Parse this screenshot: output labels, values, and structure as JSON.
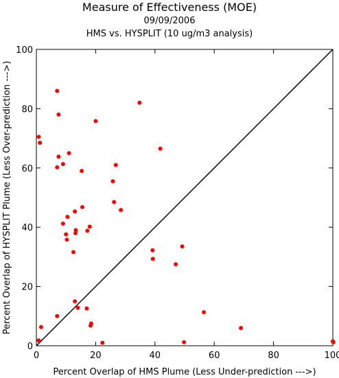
{
  "chart_data": {
    "type": "scatter",
    "title": "Measure of Effectiveness (MOE)",
    "subtitle": "09/09/2006",
    "subtitle2": "HMS vs. HYSPLIT  (10 ug/m3 analysis)",
    "xlabel": "Percent Overlap of HMS Plume (Less Under-prediction --->)",
    "ylabel": "Percent Overlap of HYSPLIT Plume (Less Over-prediction --->)",
    "xlim": [
      0,
      100
    ],
    "ylim": [
      0,
      100
    ],
    "xticks": [
      "0",
      "20",
      "40",
      "60",
      "80",
      "100"
    ],
    "yticks": [
      "0",
      "20",
      "40",
      "60",
      "80",
      "100"
    ],
    "reference_line": "y = x",
    "grid": false,
    "point_color": "#ff0000",
    "points": [
      [
        0.8,
        70.5
      ],
      [
        1.2,
        68.5
      ],
      [
        0.8,
        1.8
      ],
      [
        1.6,
        6.3
      ],
      [
        7.0,
        86.0
      ],
      [
        7.5,
        78.0
      ],
      [
        7.5,
        63.8
      ],
      [
        7.0,
        60.2
      ],
      [
        9.0,
        61.3
      ],
      [
        11.0,
        65.0
      ],
      [
        7.0,
        10.0
      ],
      [
        9.0,
        41.2
      ],
      [
        10.0,
        37.6
      ],
      [
        10.3,
        35.8
      ],
      [
        10.5,
        43.5
      ],
      [
        12.5,
        31.6
      ],
      [
        13.0,
        45.3
      ],
      [
        13.2,
        38.0
      ],
      [
        13.3,
        39.0
      ],
      [
        15.3,
        59.0
      ],
      [
        15.5,
        46.8
      ],
      [
        17.2,
        38.8
      ],
      [
        18.0,
        40.2
      ],
      [
        13.0,
        15.0
      ],
      [
        14.0,
        12.8
      ],
      [
        17.0,
        12.6
      ],
      [
        18.5,
        7.5
      ],
      [
        18.3,
        6.8
      ],
      [
        20.0,
        75.8
      ],
      [
        22.3,
        1.0
      ],
      [
        25.8,
        55.5
      ],
      [
        26.2,
        48.5
      ],
      [
        26.8,
        61.0
      ],
      [
        28.5,
        45.8
      ],
      [
        34.8,
        82.0
      ],
      [
        39.2,
        32.2
      ],
      [
        39.3,
        29.3
      ],
      [
        41.8,
        66.5
      ],
      [
        47.0,
        27.5
      ],
      [
        49.2,
        33.5
      ],
      [
        49.8,
        1.2
      ],
      [
        56.5,
        11.3
      ],
      [
        69.0,
        6.0
      ],
      [
        100.0,
        1.5
      ],
      [
        100.2,
        1.2
      ]
    ]
  }
}
